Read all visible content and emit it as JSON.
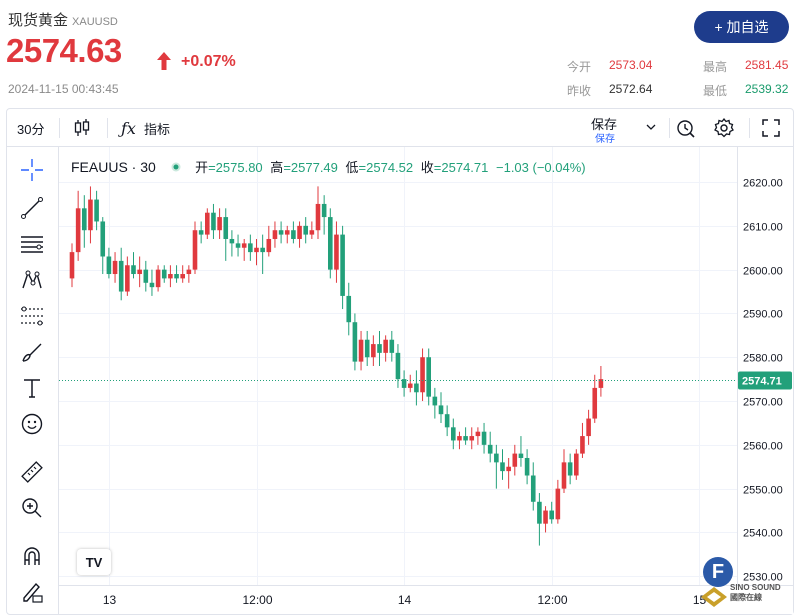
{
  "quote": {
    "name": "现货黄金",
    "code": "XAUUSD",
    "price": "2574.63",
    "change_pct": "+0.07%",
    "timestamp": "2024-11-15 00:43:45",
    "watch_label": "+ 加自选",
    "stats": [
      {
        "label": "今开",
        "value": "2573.04",
        "color": "#e0393e"
      },
      {
        "label": "最高",
        "value": "2581.45",
        "color": "#e0393e"
      },
      {
        "label": "昨收",
        "value": "2572.64",
        "color": "#333333"
      },
      {
        "label": "最低",
        "value": "2539.32",
        "color": "#1a9b6c"
      }
    ]
  },
  "toolbar": {
    "interval": "30分",
    "indicators": "指标",
    "save": "保存",
    "save_sub": "保存"
  },
  "sidebar_tools": [
    "crosshair-icon",
    "trend-line-icon",
    "horizontal-lines-icon",
    "pattern-icon",
    "measure-lines-icon",
    "brush-icon",
    "text-icon",
    "emoji-icon",
    "ruler-icon",
    "zoom-in-icon",
    "magnet-icon",
    "lock-draw-icon"
  ],
  "legend": {
    "symbol": "FEAUUS · 30",
    "open_label": "开",
    "open": "=2575.80",
    "high_label": "高",
    "high": "=2577.49",
    "low_label": "低",
    "low": "=2574.52",
    "close_label": "收",
    "close": "=2574.71",
    "change": "−1.03 (−0.04%)"
  },
  "colors": {
    "up": "#e0393e",
    "down": "#22a07a",
    "accent": "#1e3c8c"
  },
  "watermark": {
    "badge": "F",
    "brand_line1": "SINO SOUND",
    "brand_line2": "國際在線"
  },
  "chart_data": {
    "type": "candlestick",
    "symbol": "FEAUUS",
    "interval": "30",
    "y_axis": {
      "ticks": [
        "2620.00",
        "2610.00",
        "2600.00",
        "2590.00",
        "2580.00",
        "2570.00",
        "2560.00",
        "2550.00",
        "2540.00",
        "2530.00"
      ],
      "min": 2528,
      "max": 2628
    },
    "x_axis": {
      "ticks": [
        {
          "label": "13",
          "index": 6
        },
        {
          "label": "12:00",
          "index": 30
        },
        {
          "label": "14",
          "index": 54
        },
        {
          "label": "12:00",
          "index": 78
        },
        {
          "label": "15",
          "index": 102
        }
      ]
    },
    "last_price": "2574.71",
    "grid": true,
    "candles": [
      [
        2598,
        2606,
        2596,
        2604
      ],
      [
        2604,
        2618,
        2602,
        2614
      ],
      [
        2614,
        2617,
        2605,
        2609
      ],
      [
        2609,
        2619,
        2606,
        2616
      ],
      [
        2616,
        2618,
        2609,
        2611
      ],
      [
        2611,
        2612,
        2599,
        2603
      ],
      [
        2603,
        2605,
        2598,
        2599
      ],
      [
        2599,
        2604,
        2597,
        2602
      ],
      [
        2602,
        2605,
        2593,
        2595
      ],
      [
        2595,
        2603,
        2594,
        2601
      ],
      [
        2601,
        2604,
        2598,
        2599
      ],
      [
        2599,
        2603,
        2596,
        2600
      ],
      [
        2600,
        2602,
        2595,
        2597
      ],
      [
        2597,
        2600,
        2594,
        2596
      ],
      [
        2596,
        2601,
        2595,
        2600
      ],
      [
        2600,
        2601,
        2597,
        2598
      ],
      [
        2598,
        2601,
        2596,
        2599
      ],
      [
        2599,
        2601,
        2597,
        2598
      ],
      [
        2598,
        2601,
        2597,
        2599
      ],
      [
        2599,
        2601,
        2597,
        2600
      ],
      [
        2600,
        2611,
        2599,
        2609
      ],
      [
        2609,
        2611,
        2606,
        2608
      ],
      [
        2608,
        2614,
        2607,
        2613
      ],
      [
        2613,
        2615,
        2607,
        2609
      ],
      [
        2609,
        2614,
        2607,
        2612
      ],
      [
        2612,
        2614,
        2602,
        2607
      ],
      [
        2607,
        2609,
        2603,
        2606
      ],
      [
        2606,
        2608,
        2603,
        2605
      ],
      [
        2605,
        2607,
        2602,
        2606
      ],
      [
        2606,
        2608,
        2602,
        2604
      ],
      [
        2604,
        2607,
        2601,
        2605
      ],
      [
        2605,
        2608,
        2599,
        2604
      ],
      [
        2604,
        2610,
        2603,
        2607
      ],
      [
        2607,
        2611,
        2605,
        2609
      ],
      [
        2609,
        2611,
        2606,
        2608
      ],
      [
        2608,
        2610,
        2606,
        2609
      ],
      [
        2609,
        2611,
        2606,
        2607
      ],
      [
        2607,
        2611,
        2605,
        2610
      ],
      [
        2610,
        2612,
        2606,
        2608
      ],
      [
        2608,
        2611,
        2607,
        2609
      ],
      [
        2609,
        2619,
        2607,
        2615
      ],
      [
        2615,
        2617,
        2608,
        2612
      ],
      [
        2612,
        2614,
        2598,
        2600
      ],
      [
        2600,
        2611,
        2597,
        2608
      ],
      [
        2608,
        2610,
        2591,
        2594
      ],
      [
        2594,
        2597,
        2585,
        2588
      ],
      [
        2588,
        2590,
        2577,
        2579
      ],
      [
        2579,
        2586,
        2577,
        2584
      ],
      [
        2584,
        2586,
        2578,
        2580
      ],
      [
        2580,
        2585,
        2578,
        2583
      ],
      [
        2583,
        2586,
        2578,
        2581
      ],
      [
        2581,
        2585,
        2579,
        2584
      ],
      [
        2584,
        2586,
        2579,
        2581
      ],
      [
        2581,
        2583,
        2573,
        2575
      ],
      [
        2575,
        2577,
        2571,
        2573
      ],
      [
        2573,
        2576,
        2572,
        2574
      ],
      [
        2574,
        2577,
        2569,
        2572
      ],
      [
        2572,
        2582,
        2570,
        2580
      ],
      [
        2580,
        2582,
        2569,
        2571
      ],
      [
        2571,
        2573,
        2566,
        2569
      ],
      [
        2569,
        2572,
        2565,
        2567
      ],
      [
        2567,
        2569,
        2562,
        2564
      ],
      [
        2564,
        2566,
        2559,
        2561
      ],
      [
        2561,
        2563,
        2559,
        2562
      ],
      [
        2562,
        2564,
        2560,
        2561
      ],
      [
        2561,
        2564,
        2559,
        2562
      ],
      [
        2562,
        2564,
        2560,
        2563
      ],
      [
        2563,
        2565,
        2558,
        2560
      ],
      [
        2560,
        2563,
        2556,
        2558
      ],
      [
        2558,
        2560,
        2550,
        2556
      ],
      [
        2556,
        2559,
        2552,
        2554
      ],
      [
        2554,
        2557,
        2550,
        2555
      ],
      [
        2555,
        2560,
        2553,
        2558
      ],
      [
        2558,
        2562,
        2555,
        2557
      ],
      [
        2557,
        2559,
        2551,
        2553
      ],
      [
        2553,
        2556,
        2545,
        2547
      ],
      [
        2547,
        2549,
        2537,
        2542
      ],
      [
        2542,
        2546,
        2540,
        2545
      ],
      [
        2545,
        2547,
        2542,
        2543
      ],
      [
        2543,
        2552,
        2542,
        2550
      ],
      [
        2550,
        2559,
        2549,
        2556
      ],
      [
        2556,
        2558,
        2551,
        2553
      ],
      [
        2553,
        2559,
        2552,
        2558
      ],
      [
        2558,
        2565,
        2557,
        2562
      ],
      [
        2562,
        2568,
        2560,
        2566
      ],
      [
        2566,
        2576,
        2565,
        2573
      ],
      [
        2573,
        2578,
        2571,
        2575
      ]
    ]
  }
}
